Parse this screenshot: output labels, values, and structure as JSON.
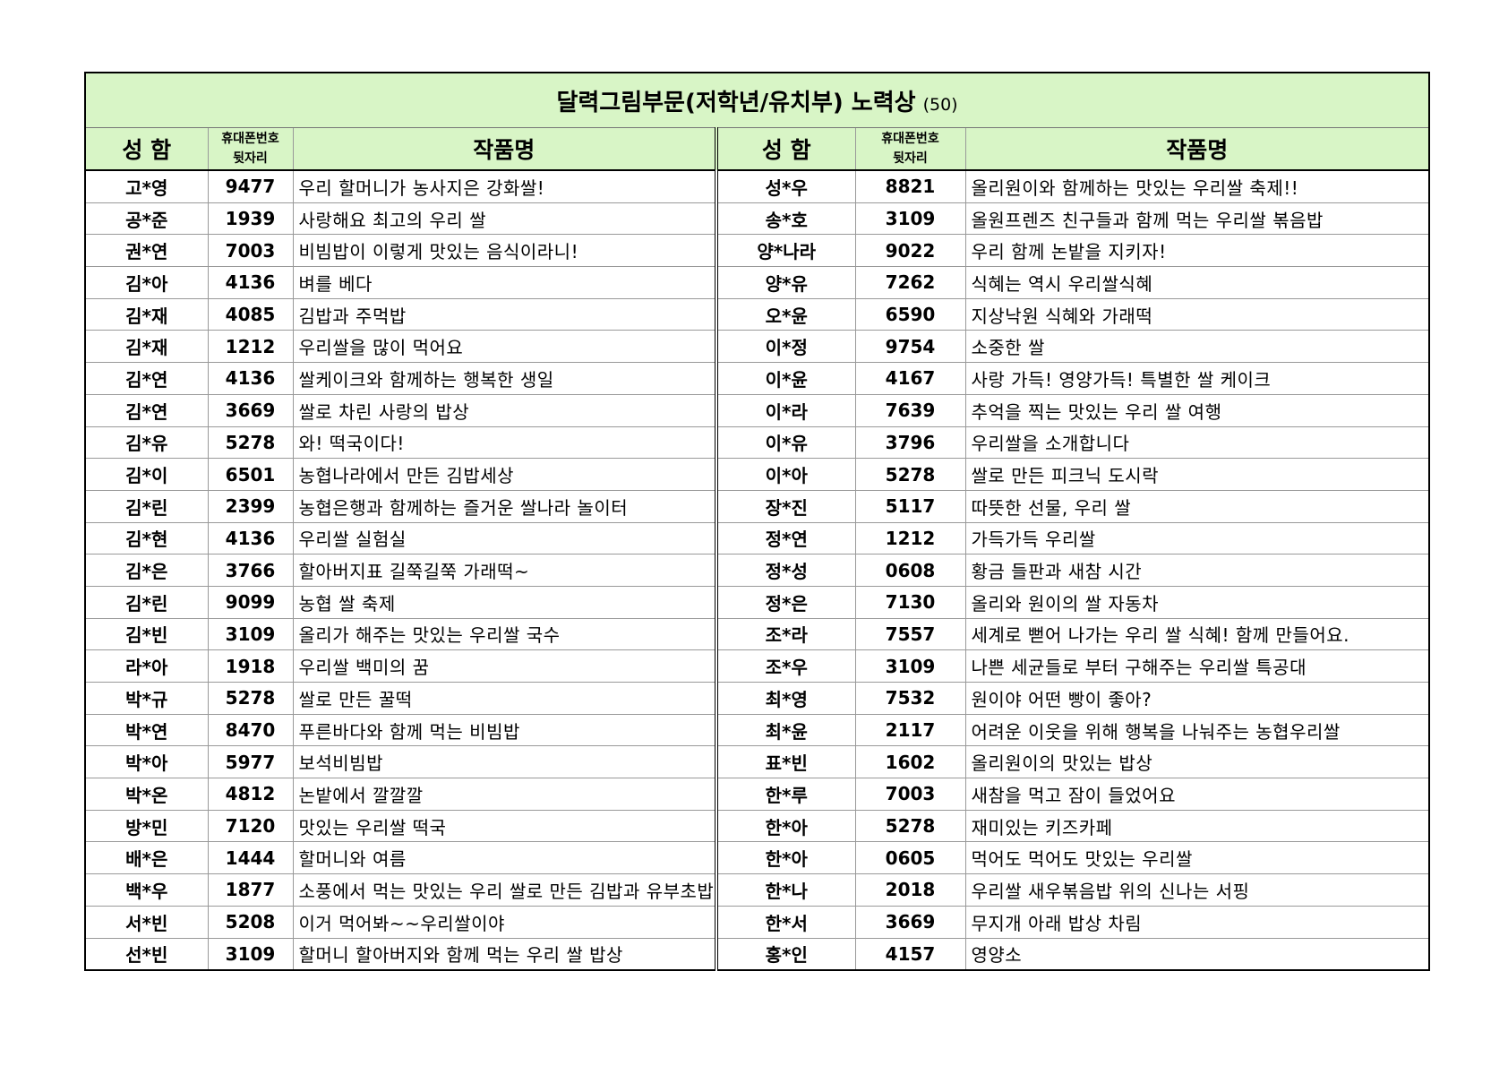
{
  "title": {
    "main": "달력그림부문(저학년/유치부) 노력상",
    "count": "(50)"
  },
  "table": {
    "headers": [
      "성 함",
      [
        "휴대폰번호",
        "뒷자리"
      ],
      "작품명",
      "성 함",
      [
        "휴대폰번호",
        "뒷자리"
      ],
      "작품명"
    ],
    "rows": [
      [
        "고*영",
        "9477",
        "우리 할머니가 농사지은 강화쌀!",
        "성*우",
        "8821",
        "올리원이와 함께하는 맛있는 우리쌀 축제!!"
      ],
      [
        "공*준",
        "1939",
        "사랑해요 최고의 우리 쌀",
        "송*호",
        "3109",
        "올원프렌즈 친구들과 함께 먹는 우리쌀 볶음밥"
      ],
      [
        "권*연",
        "7003",
        "비빔밥이 이렇게 맛있는 음식이라니!",
        "양*나라",
        "9022",
        "우리 함께 논밭을 지키자!"
      ],
      [
        "김*아",
        "4136",
        "벼를 베다",
        "양*유",
        "7262",
        "식혜는 역시 우리쌀식혜"
      ],
      [
        "김*재",
        "4085",
        "김밥과 주먹밥",
        "오*윤",
        "6590",
        "지상낙원 식혜와 가래떡"
      ],
      [
        "김*재",
        "1212",
        "우리쌀을 많이 먹어요",
        "이*정",
        "9754",
        "소중한 쌀"
      ],
      [
        "김*연",
        "4136",
        "쌀케이크와 함께하는 행복한 생일",
        "이*윤",
        "4167",
        "사랑 가득! 영양가득! 특별한 쌀 케이크"
      ],
      [
        "김*연",
        "3669",
        "쌀로 차린 사랑의 밥상",
        "이*라",
        "7639",
        "추억을 찍는 맛있는 우리 쌀 여행"
      ],
      [
        "김*유",
        "5278",
        "와! 떡국이다!",
        "이*유",
        "3796",
        "우리쌀을 소개합니다"
      ],
      [
        "김*이",
        "6501",
        "농협나라에서 만든 김밥세상",
        "이*아",
        "5278",
        "쌀로 만든 피크닉 도시락"
      ],
      [
        "김*린",
        "2399",
        "농협은행과 함께하는 즐거운 쌀나라 놀이터",
        "장*진",
        "5117",
        "따뜻한 선물, 우리 쌀"
      ],
      [
        "김*현",
        "4136",
        "우리쌀 실험실",
        "정*연",
        "1212",
        "가득가득 우리쌀"
      ],
      [
        "김*은",
        "3766",
        "할아버지표 길쭉길쭉 가래떡~",
        "정*성",
        "0608",
        "황금 들판과 새참 시간"
      ],
      [
        "김*린",
        "9099",
        "농협 쌀 축제",
        "정*은",
        "7130",
        "올리와 원이의 쌀 자동차"
      ],
      [
        "김*빈",
        "3109",
        "올리가 해주는 맛있는 우리쌀 국수",
        "조*라",
        "7557",
        "세계로 뻗어 나가는 우리 쌀 식혜! 함께 만들어요."
      ],
      [
        "라*아",
        "1918",
        "우리쌀 백미의 꿈",
        "조*우",
        "3109",
        "나쁜 세균들로 부터 구해주는 우리쌀 특공대"
      ],
      [
        "박*규",
        "5278",
        "쌀로 만든 꿀떡",
        "최*영",
        "7532",
        "원이야 어떤 빵이 좋아?"
      ],
      [
        "박*연",
        "8470",
        "푸른바다와 함께 먹는 비빔밥",
        "최*윤",
        "2117",
        "어려운 이웃을 위해 행복을 나눠주는 농협우리쌀"
      ],
      [
        "박*아",
        "5977",
        "보석비빔밥",
        "표*빈",
        "1602",
        "올리원이의 맛있는 밥상"
      ],
      [
        "박*온",
        "4812",
        "논밭에서 깔깔깔",
        "한*루",
        "7003",
        "새참을 먹고 잠이 들었어요"
      ],
      [
        "방*민",
        "7120",
        "맛있는 우리쌀 떡국",
        "한*아",
        "5278",
        "재미있는 키즈카페"
      ],
      [
        "배*은",
        "1444",
        "할머니와 여름",
        "한*아",
        "0605",
        "먹어도 먹어도 맛있는 우리쌀"
      ],
      [
        "백*우",
        "1877",
        "소풍에서 먹는 맛있는 우리 쌀로 만든 김밥과 유부초밥!",
        "한*나",
        "2018",
        "우리쌀 새우볶음밥 위의 신나는 서핑"
      ],
      [
        "서*빈",
        "5208",
        "이거 먹어봐~~우리쌀이야",
        "한*서",
        "3669",
        "무지개 아래 밥상 차림"
      ],
      [
        "선*빈",
        "3109",
        "할머니 할아버지와 함께 먹는 우리 쌀 밥상",
        "홍*인",
        "4157",
        "영양소"
      ]
    ]
  }
}
